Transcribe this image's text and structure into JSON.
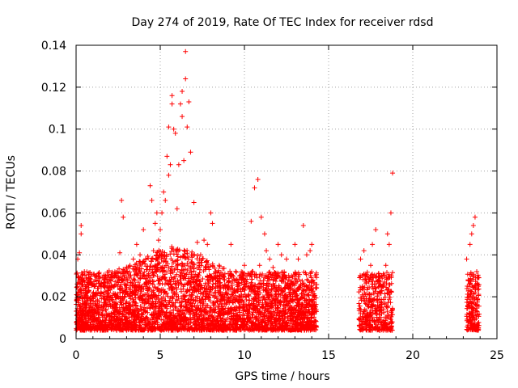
{
  "chart_data": {
    "type": "scatter",
    "title": "Day 274 of 2019, Rate Of TEC Index for receiver rdsd",
    "xlabel": "GPS time / hours",
    "ylabel": "ROTI / TECUs",
    "xlim": [
      0,
      25
    ],
    "ylim": [
      0,
      0.14
    ],
    "x_ticks": [
      "0",
      "5",
      "10",
      "15",
      "20",
      "25"
    ],
    "y_ticks": [
      "0",
      "0.02",
      "0.04",
      "0.06",
      "0.08",
      "0.1",
      "0.12",
      "0.14"
    ],
    "grid": true,
    "marker": "plus",
    "color": "#ff0000",
    "series": [
      {
        "x": [
          0.1,
          0.2,
          0.3,
          0.3,
          0.4,
          0.5,
          0.6,
          0.8,
          1.0,
          1.1,
          1.2,
          1.4,
          1.6,
          1.8,
          2.0,
          2.2,
          2.4,
          2.6,
          2.7,
          2.8,
          2.9,
          3.0,
          3.2,
          3.4,
          3.5,
          3.6,
          3.8,
          4.0,
          4.2,
          4.4,
          4.5,
          4.6,
          4.7,
          4.8,
          4.9,
          5.0,
          5.1,
          5.2,
          5.3,
          5.4,
          5.5,
          5.5,
          5.6,
          5.7,
          5.7,
          5.8,
          5.9,
          6.0,
          6.1,
          6.2,
          6.3,
          6.3,
          6.4,
          6.5,
          6.5,
          6.6,
          6.7,
          6.8,
          7.0,
          7.2,
          7.4,
          7.6,
          7.8,
          8.0,
          8.1,
          8.3,
          8.5,
          8.7,
          9.0,
          9.2,
          9.5,
          9.7,
          10.0,
          10.2,
          10.4,
          10.5,
          10.6,
          10.8,
          10.9,
          11.0,
          11.2,
          11.3,
          11.5,
          11.7,
          12.0,
          12.2,
          12.5,
          12.8,
          13.0,
          13.2,
          13.5,
          13.7,
          13.9,
          14.0,
          14.2,
          16.9,
          17.1,
          17.3,
          17.5,
          17.6,
          17.8,
          18.0,
          18.2,
          18.4,
          18.5,
          18.6,
          18.7,
          18.8,
          23.2,
          23.4,
          23.5,
          23.6,
          23.7,
          23.8,
          23.9
        ],
        "y": [
          0.038,
          0.041,
          0.05,
          0.054,
          0.025,
          0.02,
          0.015,
          0.012,
          0.018,
          0.03,
          0.022,
          0.014,
          0.02,
          0.016,
          0.018,
          0.025,
          0.03,
          0.041,
          0.066,
          0.058,
          0.02,
          0.015,
          0.035,
          0.038,
          0.025,
          0.045,
          0.04,
          0.052,
          0.03,
          0.073,
          0.066,
          0.042,
          0.055,
          0.06,
          0.047,
          0.052,
          0.06,
          0.07,
          0.066,
          0.087,
          0.101,
          0.078,
          0.083,
          0.112,
          0.116,
          0.1,
          0.098,
          0.062,
          0.083,
          0.112,
          0.106,
          0.118,
          0.085,
          0.124,
          0.137,
          0.101,
          0.113,
          0.089,
          0.065,
          0.046,
          0.04,
          0.047,
          0.045,
          0.06,
          0.055,
          0.03,
          0.035,
          0.03,
          0.025,
          0.045,
          0.028,
          0.03,
          0.035,
          0.031,
          0.056,
          0.032,
          0.072,
          0.076,
          0.035,
          0.058,
          0.05,
          0.042,
          0.038,
          0.034,
          0.045,
          0.04,
          0.038,
          0.03,
          0.045,
          0.038,
          0.054,
          0.04,
          0.042,
          0.045,
          0.03,
          0.038,
          0.042,
          0.03,
          0.035,
          0.045,
          0.052,
          0.028,
          0.025,
          0.035,
          0.05,
          0.045,
          0.06,
          0.079,
          0.038,
          0.045,
          0.05,
          0.054,
          0.058,
          0.032,
          0.025
        ]
      }
    ]
  }
}
